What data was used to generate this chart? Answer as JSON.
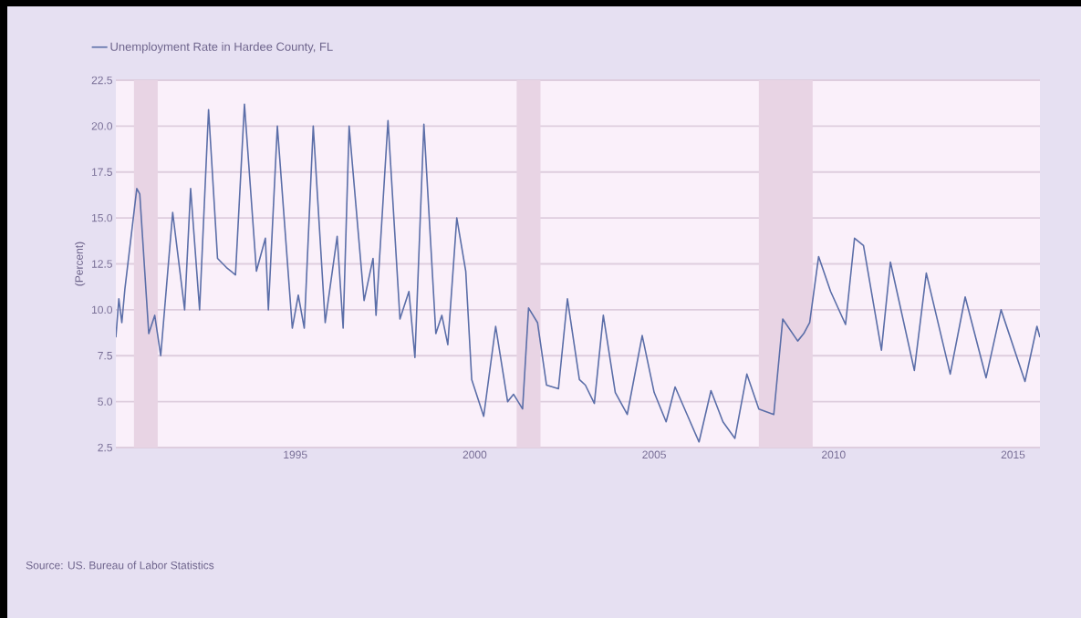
{
  "chart_data": {
    "type": "line",
    "ylabel": "(Percent)",
    "annotations": [
      "Source: US. Bureau of Labor Statistics"
    ],
    "x": [
      "1990-01",
      "1990-02",
      "1990-03",
      "1990-04",
      "1990-08",
      "1990-09",
      "1990-12",
      "1991-02",
      "1991-04",
      "1991-08",
      "1991-12",
      "1992-02",
      "1992-05",
      "1992-08",
      "1992-11",
      "1993-02",
      "1993-05",
      "1993-08",
      "1993-12",
      "1994-03",
      "1994-04",
      "1994-07",
      "1994-12",
      "1995-02",
      "1995-04",
      "1995-07",
      "1995-11",
      "1996-03",
      "1996-05",
      "1996-07",
      "1996-12",
      "1997-03",
      "1997-04",
      "1997-08",
      "1997-12",
      "1998-03",
      "1998-05",
      "1998-08",
      "1998-12",
      "1999-02",
      "1999-04",
      "1999-07",
      "1999-10",
      "1999-12",
      "2000-04",
      "2000-08",
      "2000-12",
      "2001-02",
      "2001-05",
      "2001-07",
      "2001-10",
      "2002-01",
      "2002-05",
      "2002-08",
      "2002-12",
      "2003-02",
      "2003-05",
      "2003-08",
      "2003-12",
      "2004-04",
      "2004-09",
      "2005-01",
      "2005-05",
      "2005-08",
      "2005-12",
      "2006-04",
      "2006-08",
      "2006-12",
      "2007-04",
      "2007-08",
      "2007-12",
      "2008-05",
      "2008-08",
      "2009-01",
      "2009-03",
      "2009-05",
      "2009-08",
      "2009-12",
      "2010-05",
      "2010-08",
      "2010-11",
      "2011-05",
      "2011-08",
      "2012-04",
      "2012-08",
      "2013-04",
      "2013-09",
      "2014-04",
      "2014-09",
      "2015-05",
      "2015-09",
      "2015-10"
    ],
    "series": [
      {
        "name": "Unemployment Rate in Hardee County, FL",
        "color": "#5b6ea8",
        "values": [
          8.5,
          10.6,
          9.3,
          11.1,
          16.6,
          16.3,
          8.7,
          9.7,
          7.5,
          15.3,
          10.0,
          16.6,
          10.0,
          20.9,
          12.8,
          12.3,
          11.9,
          21.2,
          12.1,
          13.9,
          10.0,
          20.0,
          9.0,
          10.8,
          9.0,
          20.0,
          9.3,
          14.0,
          9.0,
          20.0,
          10.5,
          12.8,
          9.7,
          20.3,
          9.5,
          11.0,
          7.4,
          20.1,
          8.7,
          9.7,
          8.1,
          15.0,
          12.1,
          6.2,
          4.2,
          9.1,
          5.0,
          5.4,
          4.6,
          10.1,
          9.3,
          5.9,
          5.7,
          10.6,
          6.2,
          5.9,
          4.9,
          9.7,
          5.5,
          4.3,
          8.6,
          5.5,
          3.9,
          5.8,
          4.3,
          2.8,
          5.6,
          3.9,
          3.0,
          6.5,
          4.6,
          4.3,
          9.5,
          8.3,
          8.7,
          9.3,
          12.9,
          11.0,
          9.2,
          13.9,
          13.5,
          7.8,
          12.6,
          6.7,
          12.0,
          6.5,
          10.7,
          6.3,
          10.0,
          6.1,
          9.1,
          8.5
        ]
      }
    ],
    "xlim": [
      "1990-01",
      "2015-10"
    ],
    "xticks": [
      "1995",
      "2000",
      "2005",
      "2010",
      "2015"
    ],
    "ylim": [
      2.5,
      22.5
    ],
    "yticks": [
      2.5,
      {
        "value": 5,
        "label": "5.0"
      },
      7.5,
      {
        "value": 10,
        "label": "10.0"
      },
      12.5,
      {
        "value": 15,
        "label": "15.0"
      },
      17.5,
      {
        "value": 20,
        "label": "20.0"
      },
      22.5
    ],
    "bands": [
      {
        "axis": "x",
        "from": "1990-07",
        "to": "1991-03",
        "color": "#e8d4e4"
      },
      {
        "axis": "x",
        "from": "2001-03",
        "to": "2001-11",
        "color": "#e8d4e4"
      },
      {
        "axis": "x",
        "from": "2007-12",
        "to": "2009-06",
        "color": "#e8d4e4"
      }
    ],
    "grid": "y",
    "legend": "top left",
    "marker": "none",
    "line_style": "solid"
  }
}
